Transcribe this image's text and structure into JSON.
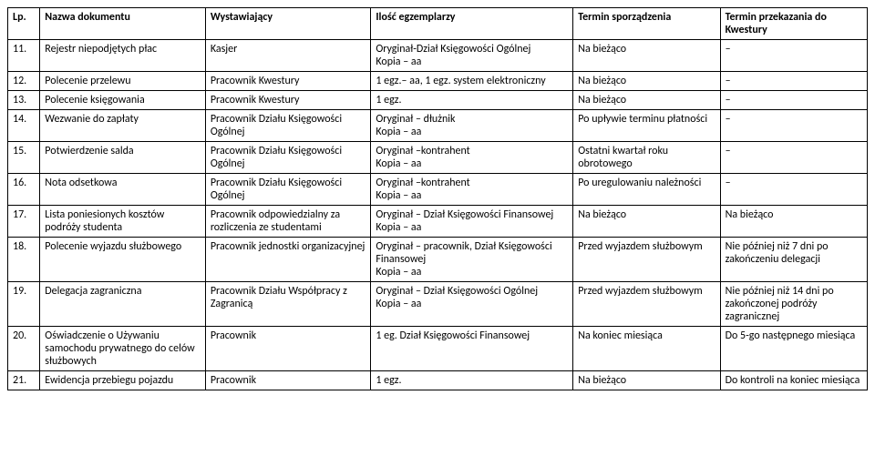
{
  "headers": {
    "lp": "Lp.",
    "name": "Nazwa dokumentu",
    "issuer": "Wystawiający",
    "copies": "Ilość egzemplarzy",
    "prepared": "Termin sporządzenia",
    "delivered": "Termin przekazania do Kwestury"
  },
  "rows": [
    {
      "lp": "11.",
      "name": "Rejestr niepodjętych płac",
      "issuer": "Kasjer",
      "copies": "Oryginał-Dział Księgowości Ogólnej\nKopia – aa",
      "prepared": "Na bieżąco",
      "delivered": "–"
    },
    {
      "lp": "12.",
      "name": "Polecenie przelewu",
      "issuer": "Pracownik Kwestury",
      "copies": "1 egz.– aa,  1 egz. system elektroniczny",
      "prepared": "Na bieżąco",
      "delivered": "–"
    },
    {
      "lp": "13.",
      "name": "Polecenie księgowania",
      "issuer": "Pracownik Kwestury",
      "copies": "1 egz.",
      "prepared": "Na bieżąco",
      "delivered": "–"
    },
    {
      "lp": "14.",
      "name": "Wezwanie do zapłaty",
      "issuer": "Pracownik Działu Księgowości Ogólnej",
      "copies": "Oryginał – dłużnik\nKopia – aa",
      "prepared": "Po upływie terminu płatności",
      "delivered": "–"
    },
    {
      "lp": "15.",
      "name": "Potwierdzenie salda",
      "issuer": "Pracownik Działu Księgowości Ogólnej",
      "copies": "Oryginał –kontrahent\nKopia – aa",
      "prepared": "Ostatni kwartał roku obrotowego",
      "delivered": "–"
    },
    {
      "lp": "16.",
      "name": "Nota odsetkowa",
      "issuer": "Pracownik Działu Księgowości Ogólnej",
      "copies": "Oryginał –kontrahent\nKopia – aa",
      "prepared": "Po uregulowaniu należności",
      "delivered": "–"
    },
    {
      "lp": "17.",
      "name": "Lista poniesionych kosztów podróży studenta",
      "issuer": "Pracownik odpowiedzialny za rozliczenia ze studentami",
      "copies": "Oryginał – Dział Księgowości Finansowej\nKopia – aa",
      "prepared": "Na bieżąco",
      "delivered": "Na bieżąco"
    },
    {
      "lp": "18.",
      "name": "Polecenie wyjazdu służbowego",
      "issuer": "Pracownik jednostki organizacyjnej",
      "copies": "Oryginał – pracownik, Dział Księgowości Finansowej\nKopia – aa",
      "prepared": "Przed wyjazdem służbowym",
      "delivered": "Nie później niż 7 dni po zakończeniu delegacji"
    },
    {
      "lp": "19.",
      "name": "Delegacja zagraniczna",
      "issuer": "Pracownik Działu Współpracy z Zagranicą",
      "copies": "Oryginał – Dział Księgowości Ogólnej\nKopia – aa",
      "prepared": "Przed wyjazdem służbowym",
      "delivered": "Nie później niż 14 dni po zakończonej podróży zagranicznej"
    },
    {
      "lp": "20.",
      "name": "Oświadczenie o Używaniu samochodu prywatnego do celów służbowych",
      "issuer": "Pracownik",
      "copies": "1 eg.  Dział Księgowości Finansowej",
      "prepared": "Na koniec miesiąca",
      "delivered": "Do 5-go następnego miesiąca"
    },
    {
      "lp": "21.",
      "name": "Ewidencja przebiegu pojazdu",
      "issuer": "Pracownik",
      "copies": "1 egz.",
      "prepared": "Na bieżąco",
      "delivered": "Do kontroli na koniec miesiąca"
    }
  ]
}
